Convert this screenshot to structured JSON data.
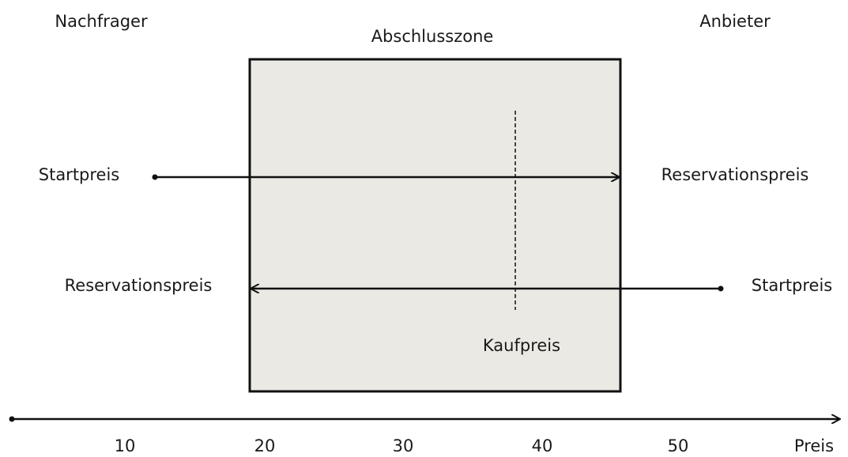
{
  "parties": {
    "buyer": "Nachfrager",
    "seller": "Anbieter"
  },
  "zone": {
    "label": "Abschlusszone"
  },
  "buyer_arrow": {
    "start": "Startpreis",
    "end": "Reservationspreis"
  },
  "seller_arrow": {
    "start": "Startpreis",
    "end": "Reservationspreis"
  },
  "deal": {
    "label": "Kaufpreis"
  },
  "axis": {
    "ticks": [
      10,
      20,
      30,
      40,
      50
    ],
    "label": "Preis"
  }
}
